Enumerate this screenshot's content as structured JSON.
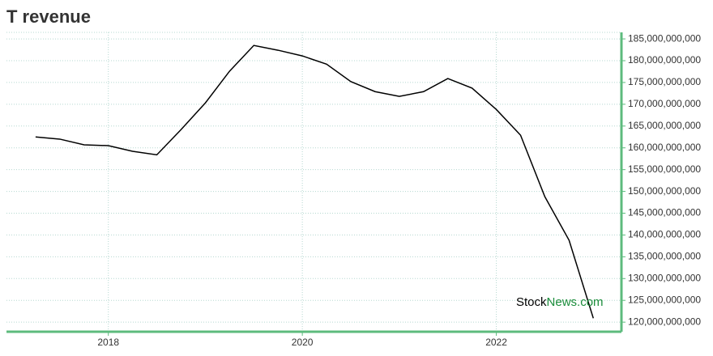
{
  "chart_data": {
    "type": "line",
    "title": "T revenue",
    "x": [
      2017.25,
      2017.5,
      2017.75,
      2018,
      2018.25,
      2018.5,
      2018.75,
      2019,
      2019.25,
      2019.5,
      2019.75,
      2020,
      2020.25,
      2020.5,
      2020.75,
      2021,
      2021.25,
      2021.5,
      2021.75,
      2022,
      2022.25,
      2022.5,
      2022.75,
      2023
    ],
    "series": [
      {
        "color": "#000000",
        "values": [
          162500000000,
          162000000000,
          160700000000,
          160500000000,
          159200000000,
          158400000000,
          164200000000,
          170300000000,
          177600000000,
          183500000000,
          182400000000,
          181100000000,
          179200000000,
          175200000000,
          172900000000,
          171800000000,
          172900000000,
          175900000000,
          173700000000,
          168800000000,
          162900000000,
          148800000000,
          138800000000,
          120900000000
        ]
      }
    ],
    "xlim": [
      2016.95,
      2023.29
    ],
    "xticks": [
      2018,
      2020,
      2022
    ],
    "ylim": [
      117800000000,
      186500000000
    ],
    "yticks": [
      {
        "value": 120000000000,
        "label": "120,000,000,000"
      },
      {
        "value": 125000000000,
        "label": "125,000,000,000"
      },
      {
        "value": 130000000000,
        "label": "130,000,000,000"
      },
      {
        "value": 135000000000,
        "label": "135,000,000,000"
      },
      {
        "value": 140000000000,
        "label": "140,000,000,000"
      },
      {
        "value": 145000000000,
        "label": "145,000,000,000"
      },
      {
        "value": 150000000000,
        "label": "150,000,000,000"
      },
      {
        "value": 155000000000,
        "label": "155,000,000,000"
      },
      {
        "value": 160000000000,
        "label": "160,000,000,000"
      },
      {
        "value": 165000000000,
        "label": "165,000,000,000"
      },
      {
        "value": 170000000000,
        "label": "170,000,000,000"
      },
      {
        "value": 175000000000,
        "label": "175,000,000,000"
      },
      {
        "value": 180000000000,
        "label": "180,000,000,000"
      },
      {
        "value": 185000000000,
        "label": "185,000,000,000"
      }
    ],
    "grid": true,
    "axis_color": "#5dbb7d",
    "watermark": {
      "part1": "Stock",
      "part2": "News.com"
    }
  }
}
